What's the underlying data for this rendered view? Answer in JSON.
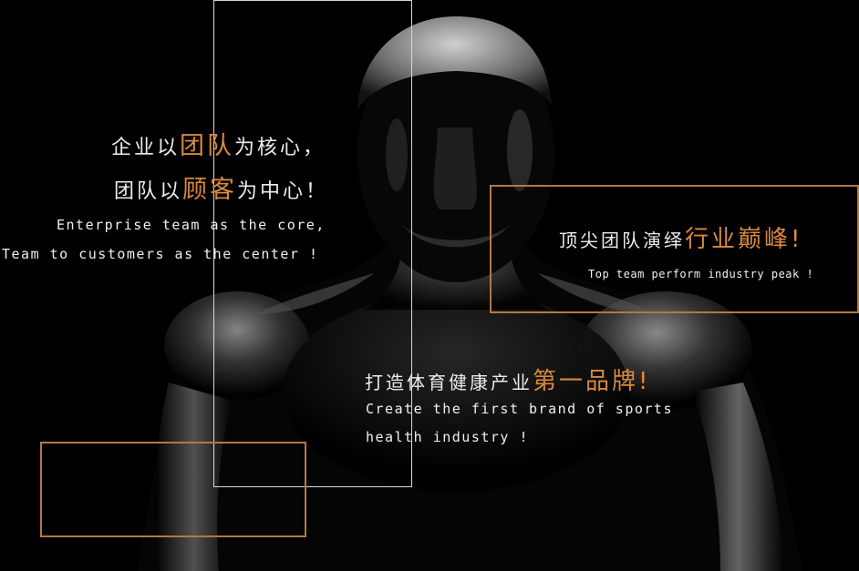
{
  "slogan_team": {
    "line1_pre": "企业以",
    "line1_highlight": "团队",
    "line1_post": "为核心，",
    "line2_pre": "团队以",
    "line2_highlight": "顾客",
    "line2_post": "为中心！",
    "en_line1": "Enterprise team as the core,",
    "en_line2": "Team to customers as the center !"
  },
  "slogan_peak": {
    "zh_pre": "顶尖团队演绎",
    "zh_highlight": "行业巅峰",
    "zh_post": "!",
    "en_line": "Top team perform industry peak !"
  },
  "slogan_brand": {
    "zh_pre": "打造体育健康产业",
    "zh_highlight": "第一品牌",
    "zh_post": "!",
    "en_line1": "Create the first brand of sports",
    "en_line2": "health industry !"
  },
  "colors": {
    "accent": "#d9893f",
    "frame_accent": "#b07a44",
    "frame_white": "#d8d8d8",
    "background": "#000000"
  }
}
